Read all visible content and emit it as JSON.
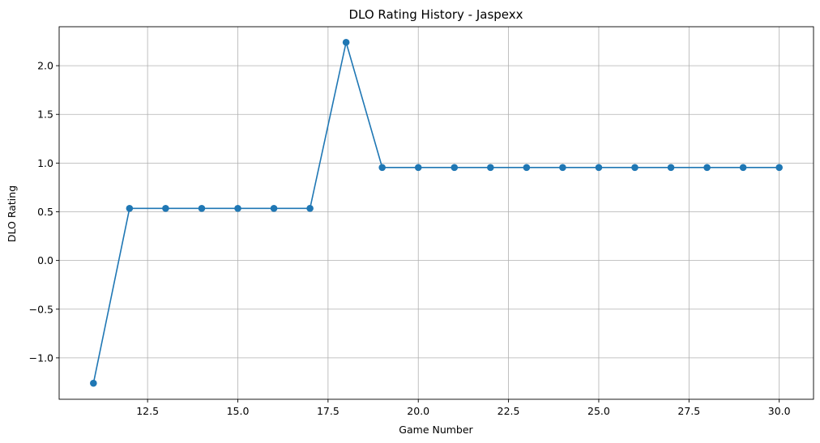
{
  "chart_data": {
    "type": "line",
    "title": "DLO Rating History - Jaspexx",
    "xlabel": "Game Number",
    "ylabel": "DLO Rating",
    "xlim": [
      10.05,
      30.95
    ],
    "ylim": [
      -1.425,
      2.4
    ],
    "xticks": [
      12.5,
      15.0,
      17.5,
      20.0,
      22.5,
      25.0,
      27.5,
      30.0
    ],
    "xtick_labels": [
      "12.5",
      "15.0",
      "17.5",
      "20.0",
      "22.5",
      "25.0",
      "27.5",
      "30.0"
    ],
    "yticks": [
      -1.0,
      -0.5,
      0.0,
      0.5,
      1.0,
      1.5,
      2.0
    ],
    "ytick_labels": [
      "−1.0",
      "−0.5",
      "0.0",
      "0.5",
      "1.0",
      "1.5",
      "2.0"
    ],
    "grid": true,
    "marker": "circle",
    "series": [
      {
        "color": "#1f77b4",
        "x": [
          11,
          12,
          13,
          14,
          15,
          16,
          17,
          18,
          19,
          20,
          21,
          22,
          23,
          24,
          25,
          26,
          27,
          28,
          29,
          30
        ],
        "y": [
          -1.26,
          0.535,
          0.535,
          0.535,
          0.535,
          0.535,
          0.535,
          2.24,
          0.955,
          0.955,
          0.955,
          0.955,
          0.955,
          0.955,
          0.955,
          0.955,
          0.955,
          0.955,
          0.955,
          0.955
        ]
      }
    ]
  },
  "colors": {
    "line": "#1f77b4",
    "grid": "#b0b0b0",
    "axes": "#000000",
    "background": "#ffffff"
  }
}
